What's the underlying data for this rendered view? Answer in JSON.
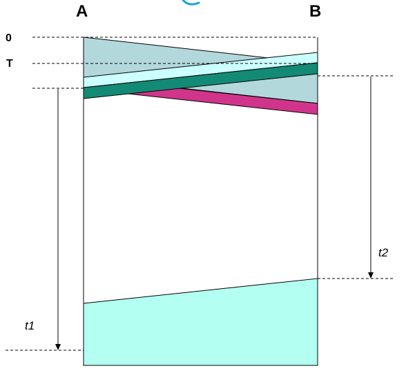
{
  "labels": {
    "host_a": "A",
    "host_b": "B",
    "time_zero": "0",
    "time_t": "T",
    "interval_t1": "t1",
    "interval_t2": "t2"
  },
  "colors": {
    "grey_band": "#b2d8dc",
    "light_cyan_band": "#ccffff",
    "teal_band": "#138a76",
    "magenta_band": "#d0358b",
    "bottom_block": "#b3fff2",
    "line": "#000000",
    "partial_title": "#1aa3d6"
  }
}
